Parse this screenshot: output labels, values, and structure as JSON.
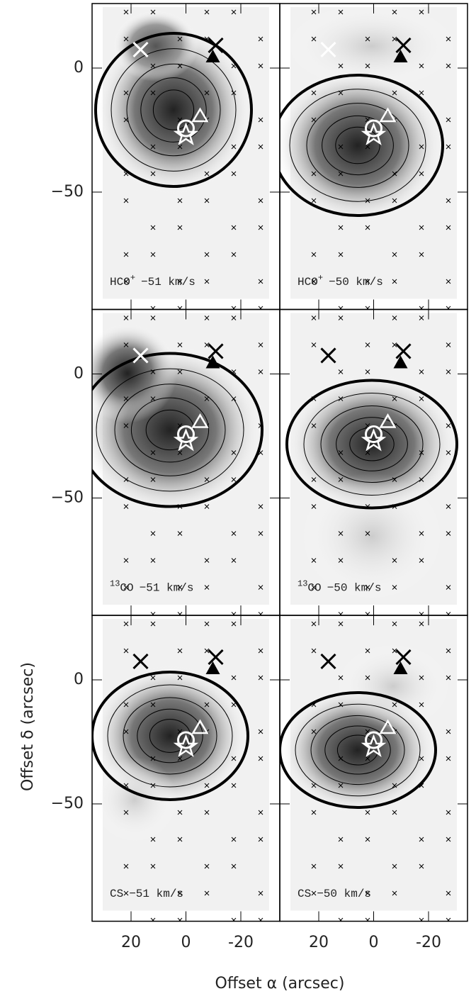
{
  "chart_data": {
    "type": "channel-maps",
    "x_label": "Offset α (arcsec)",
    "y_label": "Offset δ (arcsec)",
    "xlim": [
      34.2,
      -34.2
    ],
    "ylim": [
      -97.3,
      26
    ],
    "xticks": [
      20,
      0,
      -20
    ],
    "yticks": [
      0,
      {
        "value": -50,
        "label": "−50"
      }
    ],
    "panels": [
      {
        "species": "HCO",
        "sup": "+",
        "velocity": "−51 km/s"
      },
      {
        "species": "HCO",
        "sup": "+",
        "velocity": "−50 km/s"
      },
      {
        "iso": "13",
        "species": "CO",
        "velocity": "−51 km/s"
      },
      {
        "iso": "13",
        "species": "CO",
        "velocity": "−50 km/s"
      },
      {
        "species": "CS",
        "velocity": "−51 km/s"
      },
      {
        "species": "CS",
        "velocity": "−50 km/s"
      }
    ]
  }
}
